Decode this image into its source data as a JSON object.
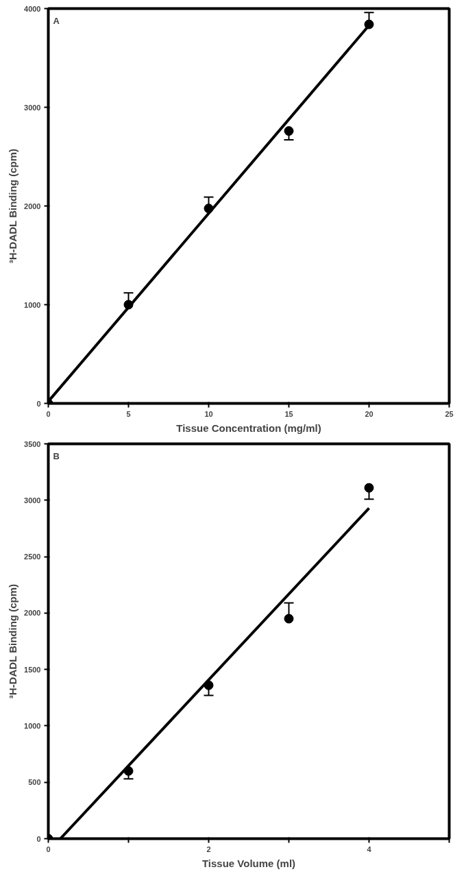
{
  "chart_data": [
    {
      "type": "scatter",
      "xlabel": "Tissue Concentration (mg/ml)",
      "ylabel": "³H-DADL Binding (cpm)",
      "annotations": [
        "A"
      ],
      "grid": false,
      "xlim": [
        0,
        25
      ],
      "xticks": [
        0,
        5,
        10,
        15,
        20,
        25
      ],
      "ylim": [
        0,
        4000
      ],
      "yticks": [
        0,
        1000,
        2000,
        3000,
        4000
      ],
      "series": [
        {
          "color": "#000000",
          "marker": "circle",
          "x": [
            0,
            5,
            10,
            15,
            20
          ],
          "values": [
            0,
            1000,
            1975,
            2760,
            3840
          ],
          "errors": [
            null,
            [
              1000,
              1120
            ],
            [
              1975,
              2090
            ],
            [
              2670,
              2760
            ],
            [
              3840,
              3960
            ]
          ]
        },
        {
          "type": "line",
          "color": "#000000",
          "x": [
            0,
            20
          ],
          "values": [
            20,
            3830
          ]
        }
      ]
    },
    {
      "type": "scatter",
      "xlabel": "Tissue Volume (ml)",
      "ylabel": "³H-DADL Binding (cpm)",
      "annotations": [
        "B"
      ],
      "grid": false,
      "xlim": [
        0,
        5
      ],
      "xticks": [
        0,
        {
          "value": 1,
          "label": null
        },
        2,
        {
          "value": 3,
          "label": null
        },
        4,
        {
          "value": 5,
          "label": null
        }
      ],
      "ylim": [
        0,
        3500
      ],
      "yticks": [
        0,
        500,
        1000,
        1500,
        2000,
        2500,
        3000,
        3500
      ],
      "series": [
        {
          "color": "#000000",
          "marker": "circle",
          "x": [
            0,
            1,
            2,
            3,
            4
          ],
          "values": [
            0,
            600,
            1360,
            1950,
            3110
          ],
          "errors": [
            null,
            [
              530,
              600
            ],
            [
              1270,
              1360
            ],
            [
              1950,
              2090
            ],
            [
              3010,
              3110
            ]
          ]
        },
        {
          "type": "line",
          "color": "#000000",
          "x": [
            0.15,
            4
          ],
          "values": [
            0,
            2930
          ]
        }
      ]
    }
  ]
}
